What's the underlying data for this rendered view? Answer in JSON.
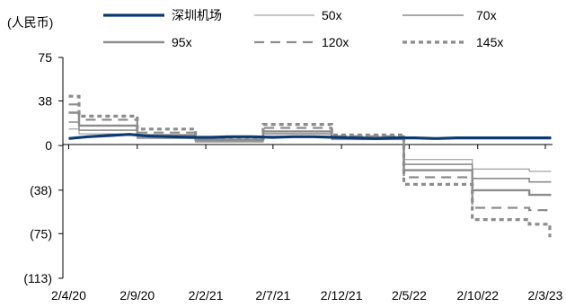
{
  "chart_data": {
    "type": "line",
    "unit_label": "(人民币)",
    "x_tick_labels": [
      "2/4/20",
      "2/9/20",
      "2/2/21",
      "2/7/21",
      "2/12/21",
      "2/5/22",
      "2/10/22",
      "2/3/23"
    ],
    "x_tick_dates": [
      "2020-04-02",
      "2020-09-02",
      "2021-02-02",
      "2021-07-02",
      "2021-12-02",
      "2022-05-02",
      "2022-10-02",
      "2023-03-02"
    ],
    "y_tick_values": [
      75,
      38,
      0,
      -38,
      -75,
      -113
    ],
    "y_tick_labels": [
      "75",
      "38",
      "0",
      "(38)",
      "(75)",
      "(113)"
    ],
    "ylim": [
      -113,
      75
    ],
    "legend_placement": "top",
    "series": [
      {
        "name": "深圳机场",
        "color": "#0b3a73",
        "dash": "solid",
        "points": [
          [
            "2020-04-02",
            6.0
          ],
          [
            "2020-05-15",
            7.5
          ],
          [
            "2020-07-01",
            8.5
          ],
          [
            "2020-08-15",
            9.5
          ],
          [
            "2020-10-01",
            8.0
          ],
          [
            "2020-11-15",
            7.5
          ],
          [
            "2021-01-01",
            7.0
          ],
          [
            "2021-02-15",
            7.0
          ],
          [
            "2021-04-01",
            7.5
          ],
          [
            "2021-05-15",
            7.5
          ],
          [
            "2021-07-01",
            7.0
          ],
          [
            "2021-08-15",
            7.5
          ],
          [
            "2021-10-01",
            7.5
          ],
          [
            "2021-11-15",
            7.0
          ],
          [
            "2022-01-01",
            6.5
          ],
          [
            "2022-02-15",
            6.0
          ],
          [
            "2022-04-01",
            6.5
          ],
          [
            "2022-05-15",
            6.5
          ],
          [
            "2022-07-01",
            6.0
          ],
          [
            "2022-08-15",
            6.5
          ],
          [
            "2022-10-01",
            6.5
          ],
          [
            "2022-11-15",
            6.5
          ],
          [
            "2023-01-01",
            6.5
          ],
          [
            "2023-02-15",
            6.5
          ],
          [
            "2023-03-15",
            6.5
          ]
        ]
      },
      {
        "name": "50x",
        "color": "#8c8c8c",
        "dash": "thin",
        "points": [
          [
            "2020-04-02",
            14
          ],
          [
            "2020-04-25",
            14
          ],
          [
            "2020-04-25",
            10
          ],
          [
            "2020-09-02",
            10
          ],
          [
            "2020-09-02",
            6
          ],
          [
            "2021-01-10",
            6
          ],
          [
            "2021-01-10",
            3
          ],
          [
            "2021-06-10",
            3
          ],
          [
            "2021-06-10",
            8
          ],
          [
            "2021-11-10",
            8
          ],
          [
            "2021-11-10",
            5
          ],
          [
            "2022-04-20",
            5
          ],
          [
            "2022-04-20",
            -12
          ],
          [
            "2022-09-20",
            -12
          ],
          [
            "2022-09-20",
            -20
          ],
          [
            "2023-01-25",
            -20
          ],
          [
            "2023-01-25",
            -22
          ],
          [
            "2023-03-15",
            -22
          ]
        ]
      },
      {
        "name": "70x",
        "color": "#8c8c8c",
        "dash": "medium",
        "points": [
          [
            "2020-04-02",
            20
          ],
          [
            "2020-04-25",
            20
          ],
          [
            "2020-04-25",
            13
          ],
          [
            "2020-09-02",
            13
          ],
          [
            "2020-09-02",
            7
          ],
          [
            "2021-01-10",
            7
          ],
          [
            "2021-01-10",
            4
          ],
          [
            "2021-06-10",
            4
          ],
          [
            "2021-06-10",
            10
          ],
          [
            "2021-11-10",
            10
          ],
          [
            "2021-11-10",
            6
          ],
          [
            "2022-04-20",
            6
          ],
          [
            "2022-04-20",
            -16
          ],
          [
            "2022-09-20",
            -16
          ],
          [
            "2022-09-20",
            -28
          ],
          [
            "2023-01-25",
            -28
          ],
          [
            "2023-01-25",
            -31
          ],
          [
            "2023-03-15",
            -31
          ]
        ]
      },
      {
        "name": "95x",
        "color": "#8c8c8c",
        "dash": "thick",
        "points": [
          [
            "2020-04-02",
            28
          ],
          [
            "2020-04-25",
            28
          ],
          [
            "2020-04-25",
            17
          ],
          [
            "2020-09-02",
            17
          ],
          [
            "2020-09-02",
            9
          ],
          [
            "2021-01-10",
            9
          ],
          [
            "2021-01-10",
            5
          ],
          [
            "2021-06-10",
            5
          ],
          [
            "2021-06-10",
            12
          ],
          [
            "2021-11-10",
            12
          ],
          [
            "2021-11-10",
            7
          ],
          [
            "2022-04-20",
            7
          ],
          [
            "2022-04-20",
            -21
          ],
          [
            "2022-09-20",
            -21
          ],
          [
            "2022-09-20",
            -38
          ],
          [
            "2023-01-25",
            -38
          ],
          [
            "2023-01-25",
            -42
          ],
          [
            "2023-03-15",
            -42
          ]
        ]
      },
      {
        "name": "120x",
        "color": "#8c8c8c",
        "dash": "dashed",
        "points": [
          [
            "2020-04-02",
            35
          ],
          [
            "2020-04-25",
            35
          ],
          [
            "2020-04-25",
            22
          ],
          [
            "2020-09-02",
            22
          ],
          [
            "2020-09-02",
            11
          ],
          [
            "2021-01-10",
            11
          ],
          [
            "2021-01-10",
            5
          ],
          [
            "2021-06-10",
            5
          ],
          [
            "2021-06-10",
            15
          ],
          [
            "2021-11-10",
            15
          ],
          [
            "2021-11-10",
            8
          ],
          [
            "2022-04-20",
            8
          ],
          [
            "2022-04-20",
            -27
          ],
          [
            "2022-09-20",
            -27
          ],
          [
            "2022-09-20",
            -53
          ],
          [
            "2023-01-25",
            -53
          ],
          [
            "2023-01-25",
            -55
          ],
          [
            "2023-03-15",
            -55
          ]
        ]
      },
      {
        "name": "145x",
        "color": "#8c8c8c",
        "dash": "heavy-dashed",
        "points": [
          [
            "2020-04-02",
            42
          ],
          [
            "2020-04-25",
            42
          ],
          [
            "2020-04-25",
            25
          ],
          [
            "2020-09-02",
            25
          ],
          [
            "2020-09-02",
            14
          ],
          [
            "2021-01-10",
            14
          ],
          [
            "2021-01-10",
            6
          ],
          [
            "2021-06-10",
            6
          ],
          [
            "2021-06-10",
            18
          ],
          [
            "2021-11-10",
            18
          ],
          [
            "2021-11-10",
            9
          ],
          [
            "2022-04-20",
            9
          ],
          [
            "2022-04-20",
            -33
          ],
          [
            "2022-09-20",
            -33
          ],
          [
            "2022-09-20",
            -63
          ],
          [
            "2023-01-25",
            -63
          ],
          [
            "2023-01-25",
            -67
          ],
          [
            "2023-01-25",
            -67
          ],
          [
            "2023-03-12",
            -67
          ],
          [
            "2023-03-12",
            -78
          ]
        ]
      }
    ]
  }
}
